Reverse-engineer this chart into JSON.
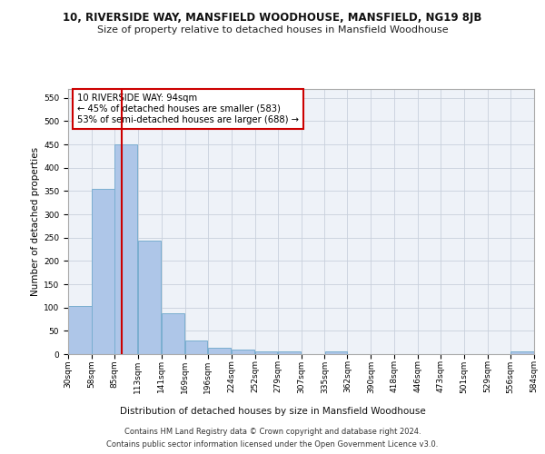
{
  "title_line1": "10, RIVERSIDE WAY, MANSFIELD WOODHOUSE, MANSFIELD, NG19 8JB",
  "title_line2": "Size of property relative to detached houses in Mansfield Woodhouse",
  "xlabel": "Distribution of detached houses by size in Mansfield Woodhouse",
  "ylabel": "Number of detached properties",
  "footer_line1": "Contains HM Land Registry data © Crown copyright and database right 2024.",
  "footer_line2": "Contains public sector information licensed under the Open Government Licence v3.0.",
  "annotation_line1": "10 RIVERSIDE WAY: 94sqm",
  "annotation_line2": "← 45% of detached houses are smaller (583)",
  "annotation_line3": "53% of semi-detached houses are larger (688) →",
  "property_size_sqm": 94,
  "bin_edges": [
    30,
    58,
    85,
    113,
    141,
    169,
    196,
    224,
    252,
    279,
    307,
    335,
    362,
    390,
    418,
    446,
    473,
    501,
    529,
    556,
    584
  ],
  "bin_counts": [
    103,
    355,
    450,
    243,
    88,
    30,
    13,
    9,
    5,
    5,
    0,
    5,
    0,
    0,
    0,
    0,
    0,
    0,
    0,
    5
  ],
  "bar_color": "#aec6e8",
  "bar_edge_color": "#7aaed0",
  "vline_color": "#cc0000",
  "vline_x": 94,
  "ylim": [
    0,
    570
  ],
  "yticks": [
    0,
    50,
    100,
    150,
    200,
    250,
    300,
    350,
    400,
    450,
    500,
    550
  ],
  "grid_color": "#c8d0dc",
  "bg_color": "#eef2f8",
  "annotation_box_color": "#ffffff",
  "annotation_box_edge": "#cc0000",
  "title1_fontsize": 8.5,
  "title2_fontsize": 8.0,
  "ylabel_fontsize": 7.5,
  "xlabel_fontsize": 7.5,
  "tick_fontsize": 6.5,
  "footer_fontsize": 6.0,
  "annot_fontsize": 7.2
}
